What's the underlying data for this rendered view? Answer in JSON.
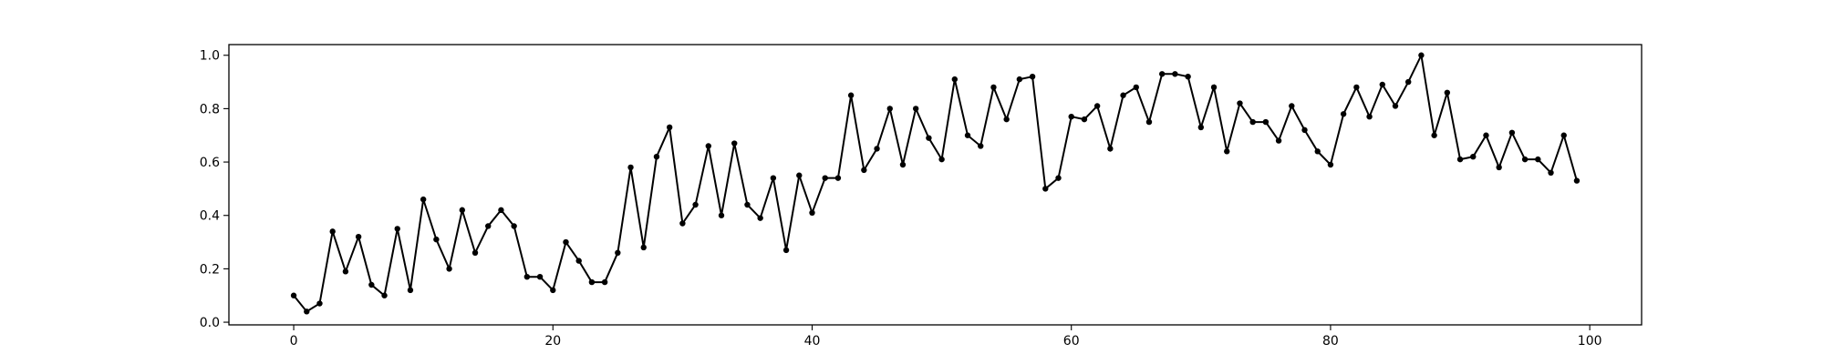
{
  "chart_data": {
    "type": "line",
    "title": "",
    "xlabel": "",
    "ylabel": "",
    "xlim": [
      -5,
      104
    ],
    "ylim": [
      -0.01,
      1.04
    ],
    "grid": false,
    "legend": "none",
    "marker": "dot",
    "color": "#000000",
    "x_ticks": [
      0,
      20,
      40,
      60,
      80,
      100
    ],
    "x_tick_labels": [
      "0",
      "20",
      "40",
      "60",
      "80",
      "100"
    ],
    "y_ticks": [
      0.0,
      0.2,
      0.4,
      0.6,
      0.8,
      1.0
    ],
    "y_tick_labels": [
      "0.0",
      "0.2",
      "0.4",
      "0.6",
      "0.8",
      "1.0"
    ],
    "series": [
      {
        "name": "series-1",
        "x": [
          0,
          1,
          2,
          3,
          4,
          5,
          6,
          7,
          8,
          9,
          10,
          11,
          12,
          13,
          14,
          15,
          16,
          17,
          18,
          19,
          20,
          21,
          22,
          23,
          24,
          25,
          26,
          27,
          28,
          29,
          30,
          31,
          32,
          33,
          34,
          35,
          36,
          37,
          38,
          39,
          40,
          41,
          42,
          43,
          44,
          45,
          46,
          47,
          48,
          49,
          50,
          51,
          52,
          53,
          54,
          55,
          56,
          57,
          58,
          59,
          60,
          61,
          62,
          63,
          64,
          65,
          66,
          67,
          68,
          69,
          70,
          71,
          72,
          73,
          74,
          75,
          76,
          77,
          78,
          79,
          80,
          81,
          82,
          83,
          84,
          85,
          86,
          87,
          88,
          89,
          90,
          91,
          92,
          93,
          94,
          95,
          96,
          97,
          98,
          99
        ],
        "values": [
          0.1,
          0.04,
          0.07,
          0.34,
          0.19,
          0.32,
          0.14,
          0.1,
          0.35,
          0.12,
          0.46,
          0.31,
          0.2,
          0.42,
          0.26,
          0.36,
          0.42,
          0.36,
          0.17,
          0.17,
          0.12,
          0.3,
          0.23,
          0.15,
          0.15,
          0.26,
          0.58,
          0.28,
          0.62,
          0.73,
          0.37,
          0.44,
          0.66,
          0.4,
          0.67,
          0.44,
          0.39,
          0.54,
          0.27,
          0.55,
          0.41,
          0.54,
          0.54,
          0.85,
          0.57,
          0.65,
          0.8,
          0.59,
          0.8,
          0.69,
          0.61,
          0.91,
          0.7,
          0.66,
          0.88,
          0.76,
          0.91,
          0.92,
          0.5,
          0.54,
          0.77,
          0.76,
          0.81,
          0.65,
          0.85,
          0.88,
          0.75,
          0.93,
          0.93,
          0.92,
          0.73,
          0.88,
          0.64,
          0.82,
          0.75,
          0.75,
          0.68,
          0.81,
          0.72,
          0.64,
          0.59,
          0.78,
          0.88,
          0.77,
          0.89,
          0.81,
          0.9,
          1.0,
          0.7,
          0.86,
          0.61,
          0.62,
          0.7,
          0.58,
          0.71,
          0.61,
          0.61,
          0.56,
          0.7,
          0.53
        ]
      }
    ]
  }
}
